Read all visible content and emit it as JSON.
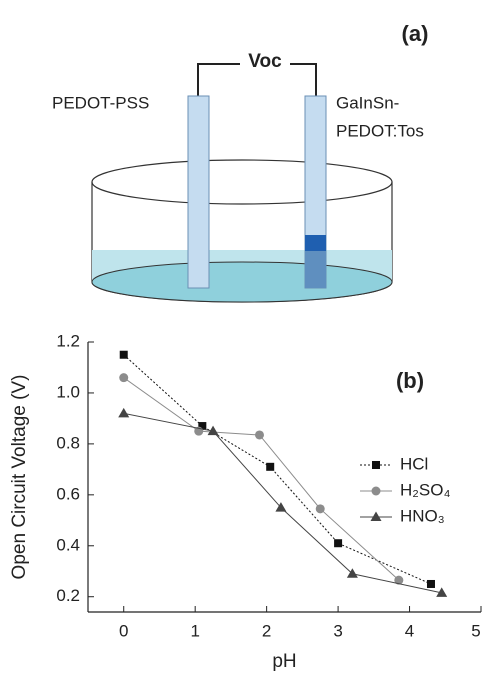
{
  "diagram": {
    "panel_label": "(a)",
    "voltage_label": "Voc",
    "left_electrode": "PEDOT-PSS",
    "right_electrode": [
      "GaInSn-",
      "PEDOT:Tos"
    ]
  },
  "chart_data": {
    "type": "line",
    "panel_label": "(b)",
    "x_label": "pH",
    "y_label": "Open Circuit Voltage (V)",
    "xlim": [
      -0.5,
      5
    ],
    "xticks": [
      0,
      1,
      2,
      3,
      4,
      5
    ],
    "ylim": [
      0.14,
      1.2
    ],
    "yticks": [
      0.2,
      0.4,
      0.6,
      0.8,
      {
        "value": 1,
        "label": "1.0"
      },
      1.2
    ],
    "series": [
      {
        "name": "HCl",
        "color": "#111111",
        "marker": "square",
        "line_style": "dotted",
        "x": [
          0,
          1.1,
          2.05,
          3.0,
          4.3
        ],
        "values": [
          1.15,
          0.87,
          0.71,
          0.41,
          0.25
        ]
      },
      {
        "name": "H₂SO₄",
        "color": "#8c8c8c",
        "marker": "circle",
        "line_style": "solid",
        "x": [
          0,
          1.05,
          1.9,
          2.75,
          3.85
        ],
        "values": [
          1.06,
          0.85,
          0.835,
          0.545,
          0.265
        ]
      },
      {
        "name": "HNO₃",
        "color": "#444444",
        "marker": "triangle",
        "line_style": "solid",
        "x": [
          0,
          1.25,
          2.2,
          3.2,
          4.45
        ],
        "values": [
          0.92,
          0.85,
          0.55,
          0.29,
          0.215
        ]
      }
    ]
  }
}
